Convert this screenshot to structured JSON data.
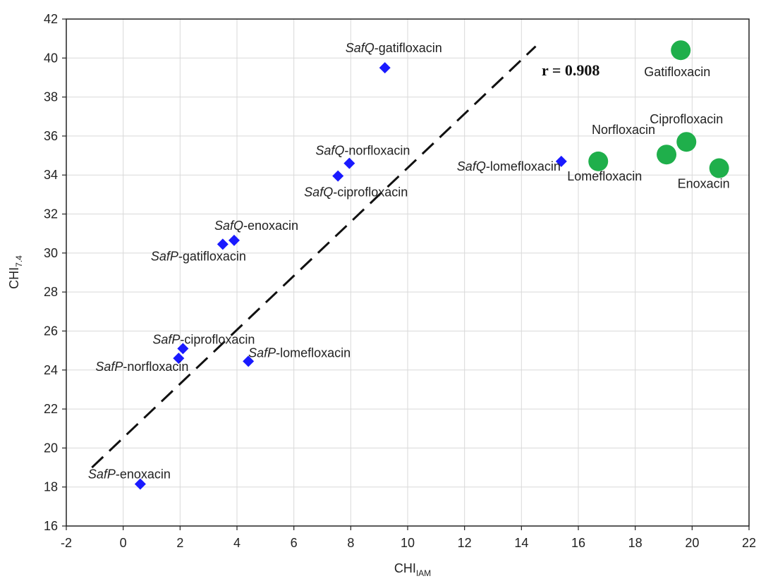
{
  "chart_data": {
    "type": "scatter",
    "xlabel": {
      "main": "CHI",
      "sub": "IAM"
    },
    "ylabel": {
      "main": "CHI",
      "sub": "7.4"
    },
    "xlim": [
      -2,
      22
    ],
    "ylim": [
      16,
      42
    ],
    "xticks": [
      "-2",
      "0",
      "2",
      "4",
      "6",
      "8",
      "10",
      "12",
      "14",
      "16",
      "18",
      "20",
      "22"
    ],
    "yticks": [
      "16",
      "18",
      "20",
      "22",
      "24",
      "26",
      "28",
      "30",
      "32",
      "34",
      "36",
      "38",
      "40",
      "42"
    ],
    "grid": true,
    "annotation": "r = 0.908",
    "series": [
      {
        "marker": "diamond",
        "color": "#1a1aff",
        "points": [
          {
            "x": 9.2,
            "y": 39.5,
            "label_italic": "SafQ",
            "label_rest": "-gatifloxacin"
          },
          {
            "x": 7.95,
            "y": 34.6,
            "label_italic": "SafQ",
            "label_rest": "-norfloxacin"
          },
          {
            "x": 7.55,
            "y": 33.95,
            "label_italic": "SafQ",
            "label_rest": "-ciprofloxacin"
          },
          {
            "x": 15.4,
            "y": 34.7,
            "label_italic": "SafQ",
            "label_rest": "-lomefloxacin"
          },
          {
            "x": 3.9,
            "y": 30.65,
            "label_italic": "SafQ",
            "label_rest": "-enoxacin"
          },
          {
            "x": 3.5,
            "y": 30.45,
            "label_italic": "SafP",
            "label_rest": "-gatifloxacin"
          },
          {
            "x": 2.1,
            "y": 25.1,
            "label_italic": "SafP",
            "label_rest": "-ciprofloxacin"
          },
          {
            "x": 1.95,
            "y": 24.6,
            "label_italic": "SafP",
            "label_rest": "-norfloxacin"
          },
          {
            "x": 4.4,
            "y": 24.45,
            "label_italic": "SafP",
            "label_rest": "-lomefloxacin"
          },
          {
            "x": 0.6,
            "y": 18.15,
            "label_italic": "SafP",
            "label_rest": "-enoxacin"
          }
        ]
      },
      {
        "marker": "circle",
        "color": "#1faf4b",
        "points": [
          {
            "x": 19.6,
            "y": 40.4,
            "label_rest": "Gatifloxacin"
          },
          {
            "x": 19.8,
            "y": 35.7,
            "label_rest": "Ciprofloxacin"
          },
          {
            "x": 19.1,
            "y": 35.05,
            "label_rest": "Norfloxacin"
          },
          {
            "x": 16.7,
            "y": 34.7,
            "label_rest": "Lomefloxacin"
          },
          {
            "x": 20.95,
            "y": 34.35,
            "label_rest": "Enoxacin"
          }
        ]
      }
    ],
    "regression_line": {
      "x1": -1.1,
      "y1": 19.0,
      "x2": 14.5,
      "y2": 40.6,
      "style": "dashed",
      "color": "#111111"
    }
  }
}
